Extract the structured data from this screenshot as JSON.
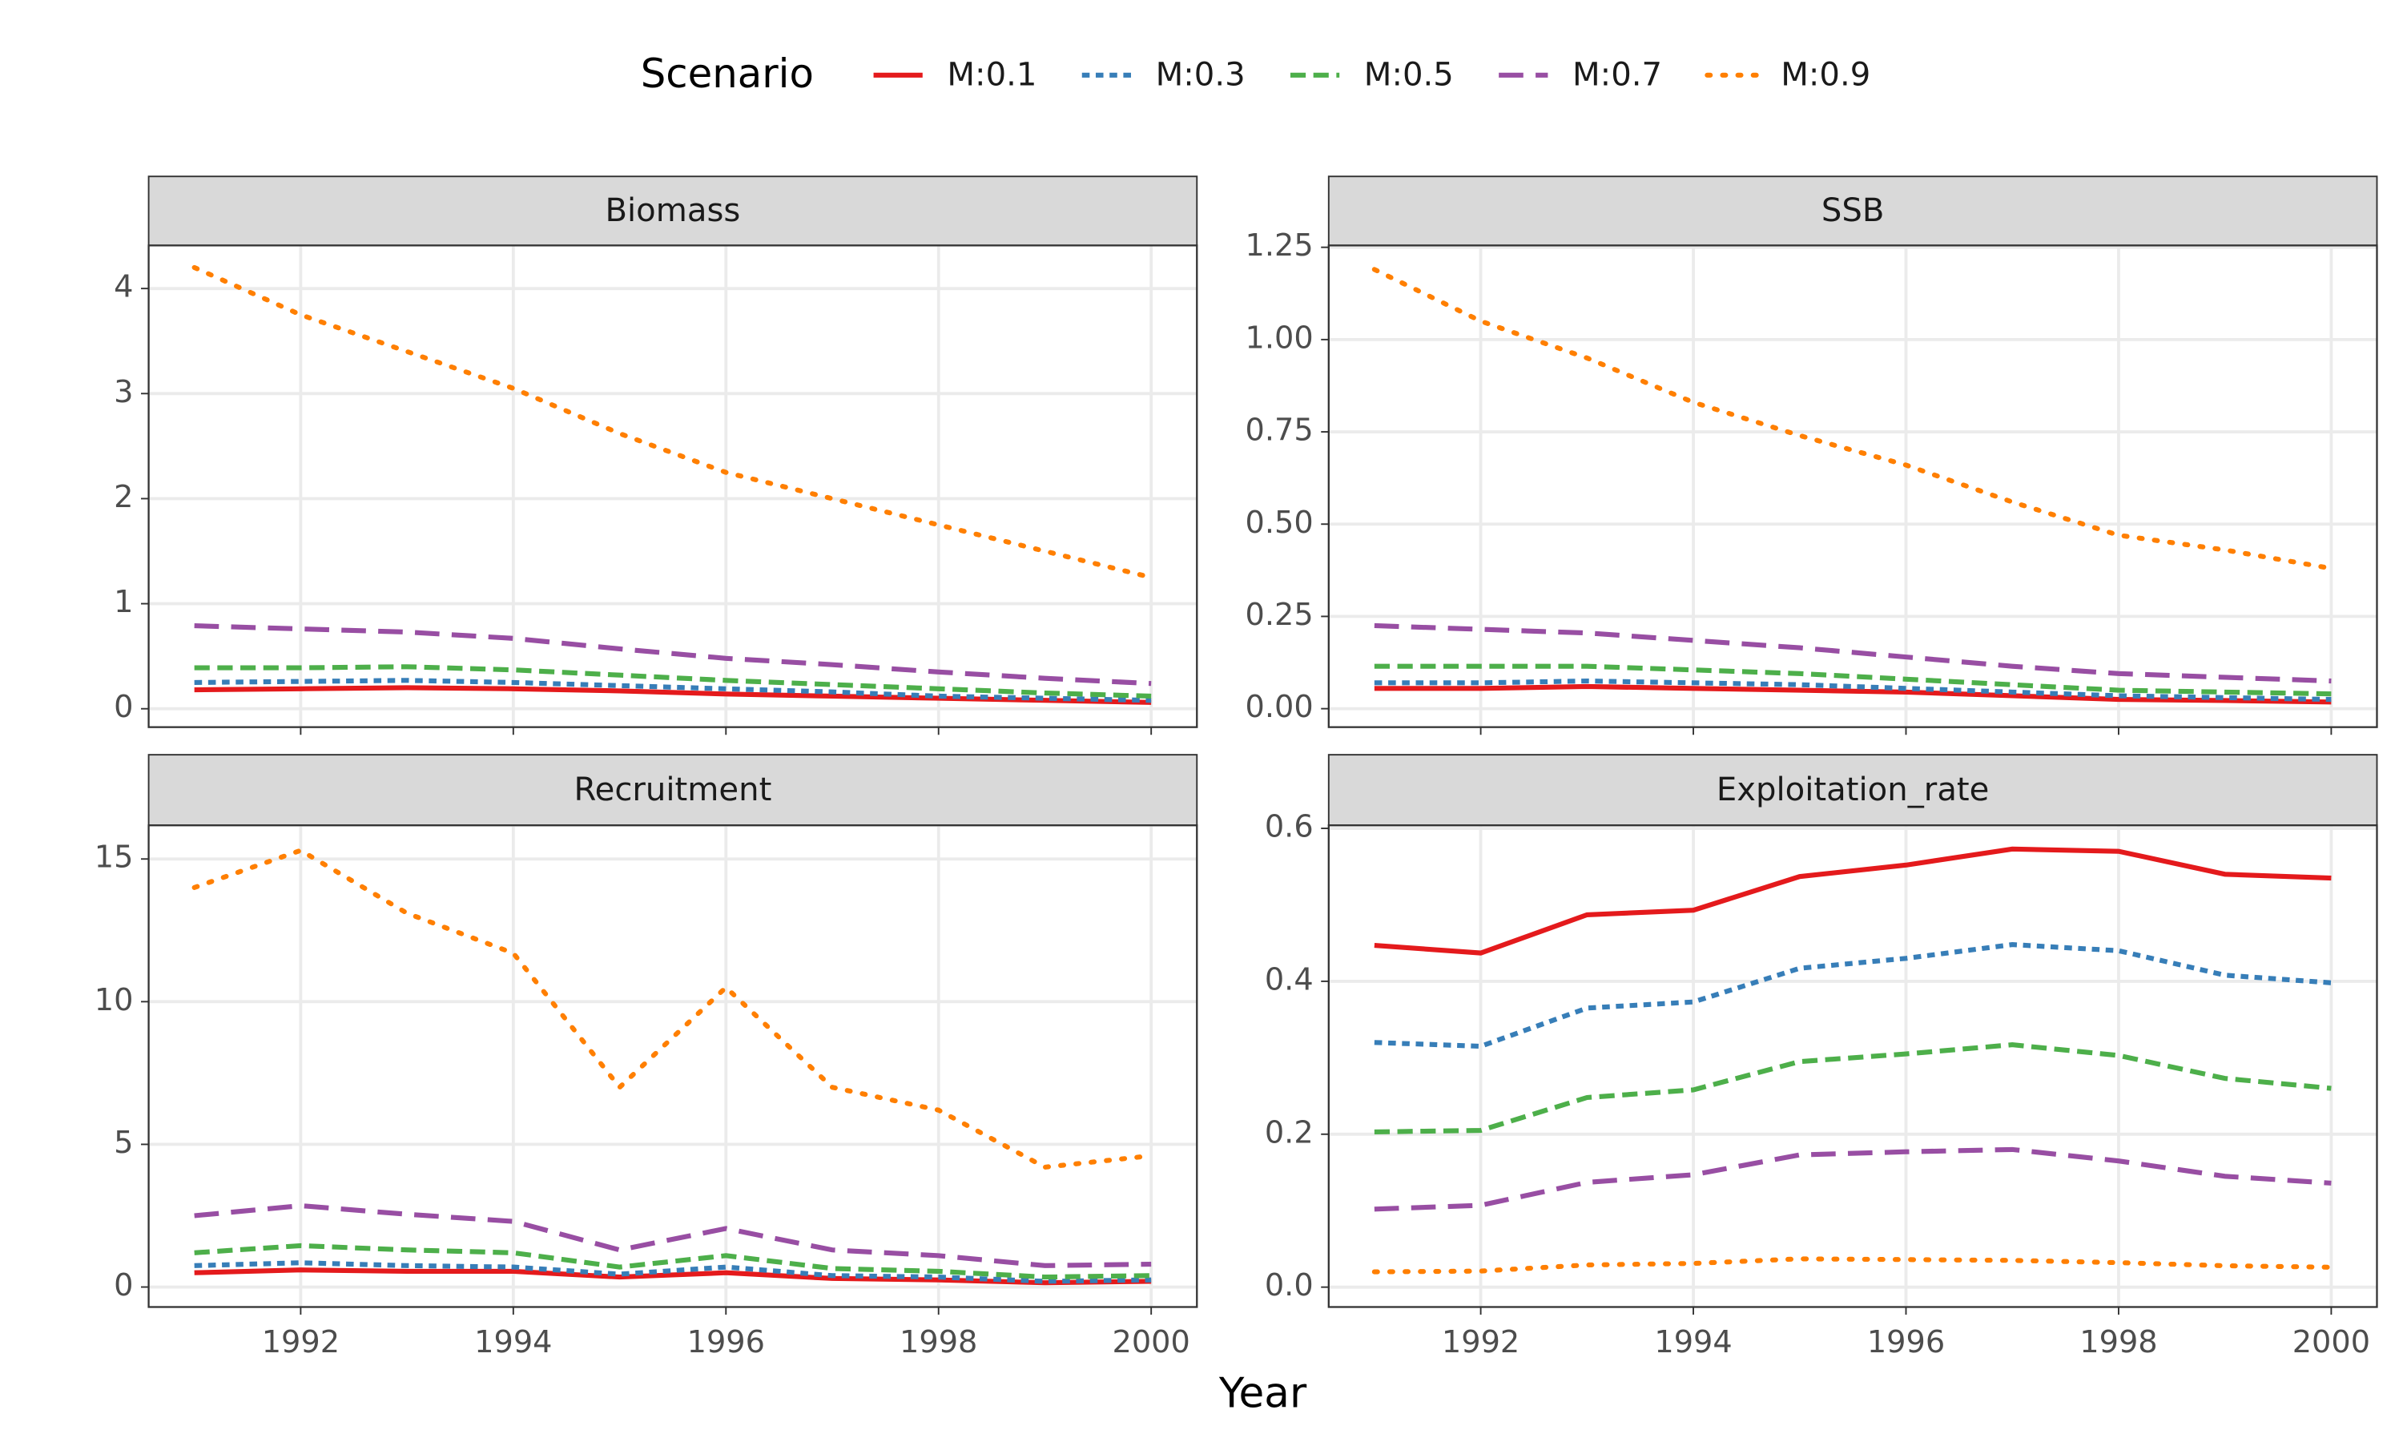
{
  "legend_title": "Scenario",
  "xlabel": "Year",
  "legend_position": "top",
  "chart_data": [
    {
      "type": "line",
      "title": "Biomass",
      "x": [
        1991,
        1992,
        1993,
        1994,
        1995,
        1996,
        1997,
        1998,
        1999,
        2000
      ],
      "xlim": [
        1990.57,
        2000.43
      ],
      "xticks": [
        1992,
        1994,
        1996,
        1998,
        2000
      ],
      "ylim": [
        -0.175,
        4.41
      ],
      "yticks": [
        0,
        1,
        2,
        3,
        4
      ],
      "grid": true,
      "series": [
        {
          "name": "M:0.1",
          "color": "#e41a1c",
          "linetype": "solid",
          "values": [
            0.18,
            0.19,
            0.2,
            0.19,
            0.17,
            0.14,
            0.12,
            0.1,
            0.08,
            0.06
          ]
        },
        {
          "name": "M:0.3",
          "color": "#377eb8",
          "linetype": "dashed",
          "values": [
            0.25,
            0.26,
            0.27,
            0.25,
            0.22,
            0.19,
            0.16,
            0.12,
            0.1,
            0.08
          ]
        },
        {
          "name": "M:0.5",
          "color": "#4daf4a",
          "linetype": "longdash",
          "values": [
            0.39,
            0.39,
            0.4,
            0.37,
            0.32,
            0.27,
            0.23,
            0.19,
            0.15,
            0.12
          ]
        },
        {
          "name": "M:0.7",
          "color": "#984ea3",
          "linetype": "longerdash",
          "values": [
            0.79,
            0.76,
            0.73,
            0.67,
            0.57,
            0.48,
            0.42,
            0.35,
            0.29,
            0.24
          ]
        },
        {
          "name": "M:0.9",
          "color": "#ff7f00",
          "linetype": "dotted",
          "values": [
            4.2,
            3.75,
            3.4,
            3.05,
            2.62,
            2.25,
            2.0,
            1.75,
            1.5,
            1.25
          ]
        }
      ]
    },
    {
      "type": "line",
      "title": "SSB",
      "x": [
        1991,
        1992,
        1993,
        1994,
        1995,
        1996,
        1997,
        1998,
        1999,
        2000
      ],
      "xlim": [
        1990.57,
        2000.43
      ],
      "xticks": [
        1992,
        1994,
        1996,
        1998,
        2000
      ],
      "ylim": [
        -0.05,
        1.255
      ],
      "yticks": [
        {
          "value": 0,
          "label": "0.00"
        },
        0.25,
        {
          "value": 0.5,
          "label": "0.50"
        },
        0.75,
        {
          "value": 1,
          "label": "1.00"
        },
        1.25
      ],
      "grid": true,
      "series": [
        {
          "name": "M:0.1",
          "color": "#e41a1c",
          "linetype": "solid",
          "values": [
            0.055,
            0.055,
            0.06,
            0.055,
            0.05,
            0.045,
            0.035,
            0.025,
            0.022,
            0.018
          ]
        },
        {
          "name": "M:0.3",
          "color": "#377eb8",
          "linetype": "dashed",
          "values": [
            0.07,
            0.07,
            0.075,
            0.07,
            0.065,
            0.055,
            0.045,
            0.035,
            0.03,
            0.025
          ]
        },
        {
          "name": "M:0.5",
          "color": "#4daf4a",
          "linetype": "longdash",
          "values": [
            0.115,
            0.115,
            0.115,
            0.105,
            0.095,
            0.08,
            0.065,
            0.05,
            0.045,
            0.04
          ]
        },
        {
          "name": "M:0.7",
          "color": "#984ea3",
          "linetype": "longerdash",
          "values": [
            0.225,
            0.215,
            0.205,
            0.185,
            0.165,
            0.14,
            0.115,
            0.095,
            0.085,
            0.075
          ]
        },
        {
          "name": "M:0.9",
          "color": "#ff7f00",
          "linetype": "dotted",
          "values": [
            1.19,
            1.05,
            0.95,
            0.83,
            0.74,
            0.66,
            0.56,
            0.47,
            0.43,
            0.38
          ]
        }
      ]
    },
    {
      "type": "line",
      "title": "Recruitment",
      "x": [
        1991,
        1992,
        1993,
        1994,
        1995,
        1996,
        1997,
        1998,
        1999,
        2000
      ],
      "xlim": [
        1990.57,
        2000.43
      ],
      "xticks": [
        1992,
        1994,
        1996,
        1998,
        2000
      ],
      "ylim": [
        -0.7,
        16.18
      ],
      "yticks": [
        0,
        5,
        10,
        15
      ],
      "grid": true,
      "series": [
        {
          "name": "M:0.1",
          "color": "#e41a1c",
          "linetype": "solid",
          "values": [
            0.5,
            0.6,
            0.55,
            0.55,
            0.35,
            0.5,
            0.3,
            0.25,
            0.15,
            0.2
          ]
        },
        {
          "name": "M:0.3",
          "color": "#377eb8",
          "linetype": "dashed",
          "values": [
            0.75,
            0.85,
            0.75,
            0.7,
            0.45,
            0.7,
            0.4,
            0.35,
            0.2,
            0.25
          ]
        },
        {
          "name": "M:0.5",
          "color": "#4daf4a",
          "linetype": "longdash",
          "values": [
            1.2,
            1.45,
            1.3,
            1.2,
            0.7,
            1.1,
            0.65,
            0.55,
            0.35,
            0.4
          ]
        },
        {
          "name": "M:0.7",
          "color": "#984ea3",
          "linetype": "longerdash",
          "values": [
            2.5,
            2.85,
            2.55,
            2.3,
            1.3,
            2.05,
            1.3,
            1.1,
            0.75,
            0.8
          ]
        },
        {
          "name": "M:0.9",
          "color": "#ff7f00",
          "linetype": "dotted",
          "values": [
            14.0,
            15.3,
            13.1,
            11.7,
            7.0,
            10.5,
            7.0,
            6.2,
            4.2,
            4.6
          ]
        }
      ]
    },
    {
      "type": "line",
      "title": "Exploitation_rate",
      "x": [
        1991,
        1992,
        1993,
        1994,
        1995,
        1996,
        1997,
        1998,
        1999,
        2000
      ],
      "xlim": [
        1990.57,
        2000.43
      ],
      "xticks": [
        1992,
        1994,
        1996,
        1998,
        2000
      ],
      "ylim": [
        -0.026,
        0.604
      ],
      "yticks": [
        {
          "value": 0,
          "label": "0.0"
        },
        0.2,
        0.4,
        0.6
      ],
      "grid": true,
      "series": [
        {
          "name": "M:0.1",
          "color": "#e41a1c",
          "linetype": "solid",
          "values": [
            0.447,
            0.437,
            0.487,
            0.493,
            0.537,
            0.552,
            0.573,
            0.57,
            0.54,
            0.535
          ]
        },
        {
          "name": "M:0.3",
          "color": "#377eb8",
          "linetype": "dashed",
          "values": [
            0.32,
            0.315,
            0.365,
            0.373,
            0.417,
            0.43,
            0.448,
            0.44,
            0.408,
            0.398
          ]
        },
        {
          "name": "M:0.5",
          "color": "#4daf4a",
          "linetype": "longdash",
          "values": [
            0.203,
            0.205,
            0.248,
            0.258,
            0.295,
            0.305,
            0.317,
            0.303,
            0.273,
            0.26
          ]
        },
        {
          "name": "M:0.7",
          "color": "#984ea3",
          "linetype": "longerdash",
          "values": [
            0.102,
            0.107,
            0.137,
            0.147,
            0.173,
            0.177,
            0.18,
            0.165,
            0.145,
            0.136
          ]
        },
        {
          "name": "M:0.9",
          "color": "#ff7f00",
          "linetype": "dotted",
          "values": [
            0.02,
            0.021,
            0.029,
            0.031,
            0.037,
            0.036,
            0.035,
            0.032,
            0.028,
            0.026
          ]
        }
      ]
    }
  ]
}
